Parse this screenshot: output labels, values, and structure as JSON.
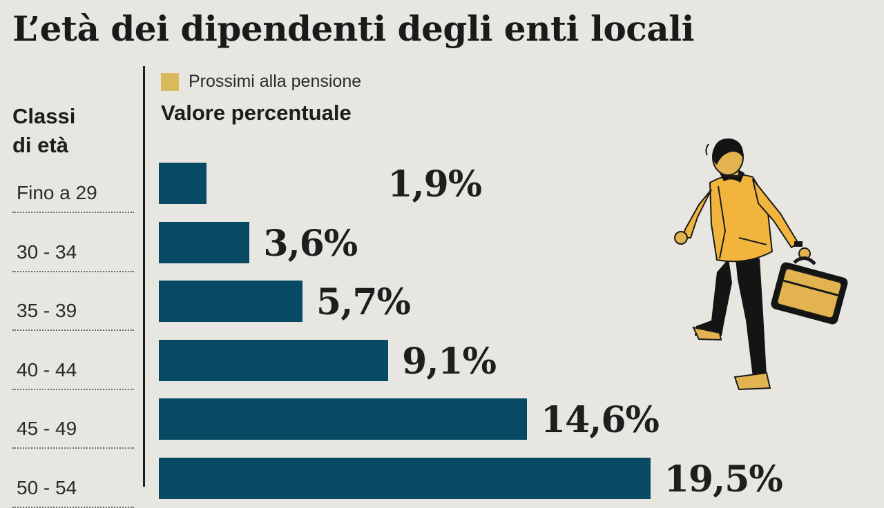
{
  "title": "L’età dei dipendenti degli enti locali",
  "row_header": [
    "Classi",
    "di età"
  ],
  "legend": {
    "label": "Prossimi alla pensione",
    "color": "#d8b95c"
  },
  "subtitle": "Valore percentuale",
  "chart_data": {
    "type": "bar",
    "orientation": "horizontal",
    "title": "L’età dei dipendenti degli enti locali",
    "subtitle": "Valore percentuale",
    "xlabel": "",
    "ylabel": "Classi di età",
    "categories": [
      "Fino a 29",
      "30 - 34",
      "35 - 39",
      "40 - 44",
      "45 - 49",
      "50 - 54"
    ],
    "values": [
      1.9,
      3.6,
      5.7,
      9.1,
      14.6,
      19.5
    ],
    "value_labels": [
      "1,9%",
      "3,6%",
      "5,7%",
      "9,1%",
      "14,6%",
      "19,5%"
    ],
    "bar_color": "#064b63",
    "legend": [
      {
        "name": "Prossimi alla pensione",
        "color": "#d8b95c"
      }
    ],
    "legend_position": "top",
    "grid": false
  }
}
